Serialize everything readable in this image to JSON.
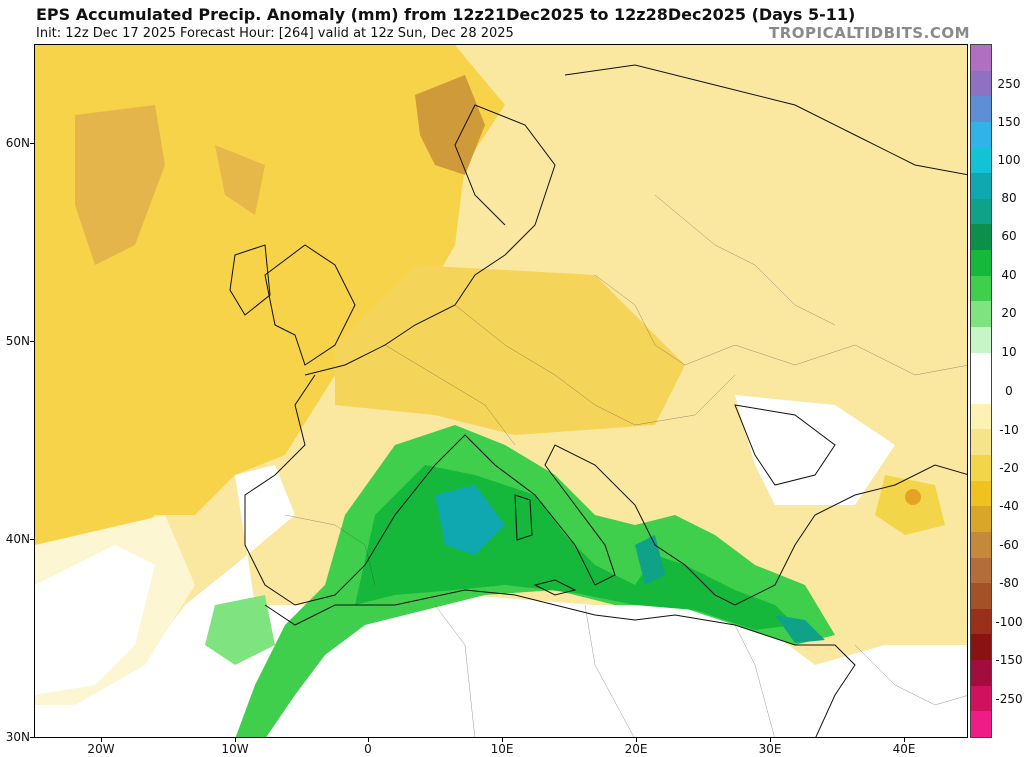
{
  "header": {
    "title": "EPS Accumulated Precip. Anomaly (mm) from 12z21Dec2025 to 12z28Dec2025 (Days 5-11)",
    "subtitle": "Init: 12z Dec 17 2025   Forecast Hour: [264]   valid at 12z Sun, Dec 28 2025",
    "credit": "TROPICALTIDBITS.COM"
  },
  "axes": {
    "lat_labels": [
      "60N",
      "50N",
      "40N",
      "30N"
    ],
    "lon_labels": [
      "20W",
      "10W",
      "0",
      "10E",
      "20E",
      "30E",
      "40E"
    ]
  },
  "colorbar": {
    "labels": [
      "250",
      "150",
      "100",
      "80",
      "60",
      "40",
      "20",
      "10",
      "0",
      "-10",
      "-20",
      "-40",
      "-60",
      "-80",
      "-100",
      "-150",
      "-250"
    ],
    "colors": [
      "#b06fc1",
      "#8f71c4",
      "#5e8fd6",
      "#2fb3e8",
      "#12c3d6",
      "#0fa7b0",
      "#10a288",
      "#0b8f4a",
      "#16b83b",
      "#3fcf4d",
      "#7fe47f",
      "#c8f5c8",
      "#ffffff",
      "#ffffff",
      "#fbf2b3",
      "#f6e48a",
      "#f3d54a",
      "#efc21f",
      "#d9a62a",
      "#c48a3a",
      "#b26d3a",
      "#a55128",
      "#9a2f1a",
      "#8a1212",
      "#a30d3d",
      "#d0125e",
      "#ef1c88"
    ]
  }
}
